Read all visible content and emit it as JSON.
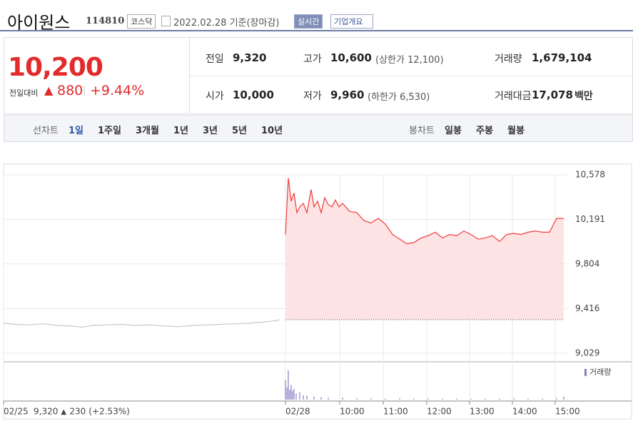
{
  "header": {
    "name": "아이원스",
    "code": "114810",
    "market": "코스닥",
    "date": "2022.02.28 기준(장마감)",
    "realtime_button": "실시간",
    "company_button": "기업개요"
  },
  "quote": {
    "price": "10,200",
    "change_label": "전일대비",
    "change": "880",
    "change_pct": "+9.44%"
  },
  "stats": [
    {
      "label": "전일",
      "value": "9,320"
    },
    {
      "label": "고가",
      "value": "10,600",
      "note": "(상한가 12,100)"
    },
    {
      "label": "거래량",
      "value": "1,679,104"
    },
    {
      "label": "시가",
      "value": "10,000"
    },
    {
      "label": "저가",
      "value": "9,960",
      "note": "(하한가 6,530)"
    },
    {
      "label": "거래대금",
      "value": "17,078",
      "unit": "백만"
    }
  ],
  "tabs": {
    "line_label": "선차트",
    "line_periods": [
      "1일",
      "1주일",
      "3개월",
      "1년",
      "3년",
      "5년",
      "10년"
    ],
    "candle_label": "봉차트",
    "candle_periods": [
      "일봉",
      "주봉",
      "월봉"
    ]
  },
  "chart_data": {
    "type": "line",
    "xlim": [
      0,
      790
    ],
    "ylim": [
      9029,
      10578
    ],
    "yticks": [
      {
        "value": 10578,
        "label": "10,578"
      },
      {
        "value": 10191,
        "label": "10,191"
      },
      {
        "value": 9804,
        "label": "9,804"
      },
      {
        "value": 9416,
        "label": "9,416"
      },
      {
        "value": 9029,
        "label": "9,029"
      }
    ],
    "xticks": [
      {
        "value": 0,
        "label": "02/25"
      },
      {
        "value": 395,
        "label": "02/28"
      },
      {
        "value": 471,
        "label": "10:00"
      },
      {
        "value": 532,
        "label": "11:00"
      },
      {
        "value": 593,
        "label": "12:00"
      },
      {
        "value": 653,
        "label": "13:00"
      },
      {
        "value": 713,
        "label": "14:00"
      },
      {
        "value": 773,
        "label": "15:00"
      }
    ],
    "baseline": 9320,
    "grid": true,
    "series": [
      {
        "color": "#c8c8c8",
        "x": [
          0,
          15,
          35,
          55,
          75,
          95,
          110,
          125,
          145,
          165,
          185,
          205,
          225,
          245,
          265,
          285,
          305,
          325,
          345,
          365,
          380,
          387
        ],
        "values": [
          9290,
          9280,
          9275,
          9285,
          9270,
          9265,
          9255,
          9270,
          9275,
          9280,
          9270,
          9275,
          9265,
          9260,
          9270,
          9275,
          9280,
          9285,
          9290,
          9300,
          9310,
          9320
        ]
      },
      {
        "color": "#f03c3c",
        "fill": "#fde3e3",
        "x": [
          395,
          399,
          403,
          407,
          411,
          415,
          420,
          425,
          431,
          435,
          440,
          445,
          450,
          455,
          460,
          465,
          470,
          475,
          485,
          495,
          505,
          515,
          525,
          535,
          545,
          555,
          565,
          575,
          585,
          595,
          605,
          615,
          625,
          635,
          645,
          655,
          665,
          675,
          685,
          695,
          705,
          715,
          725,
          735,
          745,
          755,
          765,
          775,
          785
        ],
        "values": [
          10060,
          10550,
          10350,
          10420,
          10250,
          10300,
          10330,
          10250,
          10450,
          10300,
          10350,
          10250,
          10380,
          10320,
          10300,
          10360,
          10300,
          10330,
          10260,
          10250,
          10180,
          10160,
          10200,
          10150,
          10060,
          10020,
          9980,
          9990,
          10030,
          10050,
          10080,
          10030,
          10060,
          10050,
          10090,
          10060,
          10020,
          10030,
          10050,
          10000,
          10060,
          10070,
          10060,
          10080,
          10090,
          10080,
          10080,
          10200,
          10200
        ]
      }
    ],
    "volume": {
      "name": "거래량",
      "color": "#8c7bc4",
      "vlim": [
        0,
        70000
      ],
      "x": [
        395,
        397,
        399,
        401,
        403,
        405,
        407,
        410,
        415,
        420,
        425,
        435,
        445,
        455,
        475,
        495,
        515,
        535,
        555,
        575,
        595,
        615,
        635,
        655,
        675,
        695,
        715,
        735,
        755,
        775,
        785
      ],
      "values": [
        40000,
        25000,
        60000,
        20000,
        30000,
        18000,
        22000,
        12000,
        15000,
        9000,
        8000,
        6000,
        5000,
        4000,
        4000,
        3000,
        3000,
        2500,
        2500,
        2000,
        2500,
        2000,
        2000,
        2000,
        2500,
        2000,
        3000,
        2000,
        2500,
        3000,
        6000
      ]
    },
    "prev_day": {
      "close": "9,320",
      "change": "230",
      "change_pct": "(+2.53%)"
    }
  }
}
